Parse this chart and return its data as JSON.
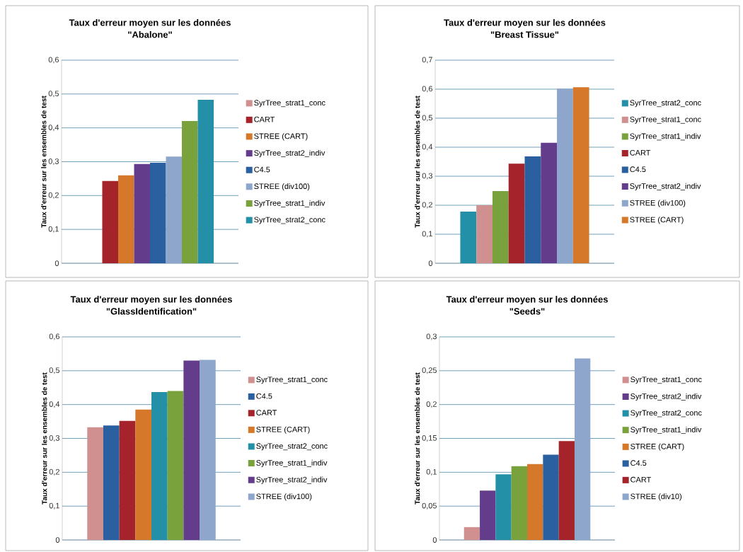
{
  "chart_data": [
    {
      "type": "bar",
      "title": "Taux d'erreur moyen sur les données",
      "subtitle": "\"Abalone\"",
      "ylabel": "Taux d'erreur sur les ensembles de test",
      "categories": [
        null
      ],
      "ylim": [
        0,
        0.6
      ],
      "yticks": [
        {
          "value": 0,
          "label": "0"
        },
        {
          "value": 0.1,
          "label": "0,1"
        },
        {
          "value": 0.2,
          "label": "0,2"
        },
        {
          "value": 0.3,
          "label": "0,3"
        },
        {
          "value": 0.4,
          "label": "0,4"
        },
        {
          "value": 0.5,
          "label": "0,5"
        },
        {
          "value": 0.6,
          "label": "0,6"
        }
      ],
      "grid": "y",
      "legend": "right",
      "series": [
        {
          "name": "SyrTree_strat1_conc",
          "color": "#d09090",
          "values": [
            0
          ]
        },
        {
          "name": "CART",
          "color": "#a5232a",
          "values": [
            0.243
          ]
        },
        {
          "name": "STREE (CART)",
          "color": "#d6782a",
          "values": [
            0.26
          ]
        },
        {
          "name": "SyrTree_strat2_indiv",
          "color": "#643c8c",
          "values": [
            0.293
          ]
        },
        {
          "name": "C4.5",
          "color": "#2a5fa0",
          "values": [
            0.297
          ]
        },
        {
          "name": "STREE (div100)",
          "color": "#8ea6cc",
          "values": [
            0.315
          ]
        },
        {
          "name": "SyrTree_strat1_indiv",
          "color": "#7aa23c",
          "values": [
            0.42
          ]
        },
        {
          "name": "SyrTree_strat2_conc",
          "color": "#2490a8",
          "values": [
            0.483
          ]
        }
      ]
    },
    {
      "type": "bar",
      "title": "Taux d'erreur moyen sur les données",
      "subtitle": "\"Breast Tissue\"",
      "ylabel": "Taux d'erreur sur les ensembles de test",
      "categories": [
        null
      ],
      "ylim": [
        0,
        0.7
      ],
      "yticks": [
        {
          "value": 0,
          "label": "0"
        },
        {
          "value": 0.1,
          "label": "0,1"
        },
        {
          "value": 0.2,
          "label": "0,2"
        },
        {
          "value": 0.3,
          "label": "0,3"
        },
        {
          "value": 0.4,
          "label": "0,4"
        },
        {
          "value": 0.5,
          "label": "0,5"
        },
        {
          "value": 0.6,
          "label": "0,6"
        },
        {
          "value": 0.7,
          "label": "0,7"
        }
      ],
      "grid": "y",
      "legend": "right",
      "series": [
        {
          "name": "SyrTree_strat2_conc",
          "color": "#2490a8",
          "values": [
            0.178
          ]
        },
        {
          "name": "SyrTree_strat1_conc",
          "color": "#d09090",
          "values": [
            0.2
          ]
        },
        {
          "name": "SyrTree_strat1_indiv",
          "color": "#7aa23c",
          "values": [
            0.249
          ]
        },
        {
          "name": "CART",
          "color": "#a5232a",
          "values": [
            0.343
          ]
        },
        {
          "name": "C4.5",
          "color": "#2a5fa0",
          "values": [
            0.368
          ]
        },
        {
          "name": "SyrTree_strat2_indiv",
          "color": "#643c8c",
          "values": [
            0.415
          ]
        },
        {
          "name": "STREE (div100)",
          "color": "#8ea6cc",
          "values": [
            0.602
          ]
        },
        {
          "name": "STREE (CART)",
          "color": "#d6782a",
          "values": [
            0.607
          ]
        }
      ]
    },
    {
      "type": "bar",
      "title": "Taux d'erreur moyen sur les données",
      "subtitle": "\"GlassIdentification\"",
      "ylabel": "Taux d'erreur sur les ensembles de test",
      "categories": [
        null
      ],
      "ylim": [
        0,
        0.6
      ],
      "yticks": [
        {
          "value": 0,
          "label": "0"
        },
        {
          "value": 0.1,
          "label": "0,1"
        },
        {
          "value": 0.2,
          "label": "0,2"
        },
        {
          "value": 0.3,
          "label": "0,3"
        },
        {
          "value": 0.4,
          "label": "0,4"
        },
        {
          "value": 0.5,
          "label": "0,5"
        },
        {
          "value": 0.6,
          "label": "0,6"
        }
      ],
      "grid": "y",
      "legend": "right",
      "series": [
        {
          "name": "SyrTree_strat1_conc",
          "color": "#d09090",
          "values": [
            0.333
          ]
        },
        {
          "name": "C4.5",
          "color": "#2a5fa0",
          "values": [
            0.338
          ]
        },
        {
          "name": "CART",
          "color": "#a5232a",
          "values": [
            0.352
          ]
        },
        {
          "name": "STREE (CART)",
          "color": "#d6782a",
          "values": [
            0.385
          ]
        },
        {
          "name": "SyrTree_strat2_conc",
          "color": "#2490a8",
          "values": [
            0.437
          ]
        },
        {
          "name": "SyrTree_strat1_indiv",
          "color": "#7aa23c",
          "values": [
            0.44
          ]
        },
        {
          "name": "SyrTree_strat2_indiv",
          "color": "#643c8c",
          "values": [
            0.53
          ]
        },
        {
          "name": "STREE (div100)",
          "color": "#8ea6cc",
          "values": [
            0.532
          ]
        }
      ]
    },
    {
      "type": "bar",
      "title": "Taux d'erreur moyen sur les données",
      "subtitle": "\"Seeds\"",
      "ylabel": "Taux d'erreur sur les ensembles de test",
      "categories": [
        null
      ],
      "ylim": [
        0,
        0.3
      ],
      "yticks": [
        {
          "value": 0,
          "label": "0"
        },
        {
          "value": 0.05,
          "label": "0,05"
        },
        {
          "value": 0.1,
          "label": "0,1"
        },
        {
          "value": 0.15,
          "label": "0,15"
        },
        {
          "value": 0.2,
          "label": "0,2"
        },
        {
          "value": 0.25,
          "label": "0,25"
        },
        {
          "value": 0.3,
          "label": "0,3"
        }
      ],
      "grid": "y",
      "legend": "right",
      "series": [
        {
          "name": "SyrTree_strat1_conc",
          "color": "#d09090",
          "values": [
            0.019
          ]
        },
        {
          "name": "SyrTree_strat2_indiv",
          "color": "#643c8c",
          "values": [
            0.073
          ]
        },
        {
          "name": "SyrTree_strat2_conc",
          "color": "#2490a8",
          "values": [
            0.097
          ]
        },
        {
          "name": "SyrTree_strat1_indiv",
          "color": "#7aa23c",
          "values": [
            0.109
          ]
        },
        {
          "name": "STREE (CART)",
          "color": "#d6782a",
          "values": [
            0.112
          ]
        },
        {
          "name": "C4.5",
          "color": "#2a5fa0",
          "values": [
            0.126
          ]
        },
        {
          "name": "CART",
          "color": "#a5232a",
          "values": [
            0.146
          ]
        },
        {
          "name": "STREE (div10)",
          "color": "#8ea6cc",
          "values": [
            0.268
          ]
        }
      ]
    }
  ]
}
